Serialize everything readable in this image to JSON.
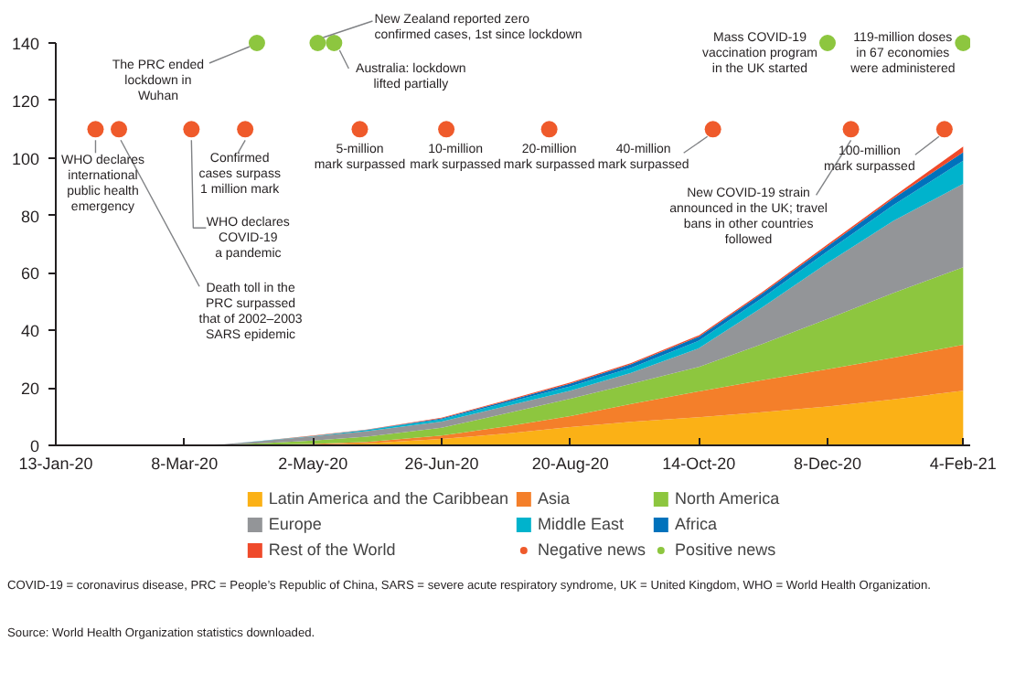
{
  "chart_data": {
    "type": "area",
    "stacked": true,
    "x": [
      "2020-01-13",
      "2020-02-15",
      "2020-03-08",
      "2020-03-25",
      "2020-04-10",
      "2020-05-02",
      "2020-05-25",
      "2020-06-26",
      "2020-07-25",
      "2020-08-20",
      "2020-09-15",
      "2020-10-14",
      "2020-11-10",
      "2020-12-08",
      "2021-01-05",
      "2021-02-04"
    ],
    "series": [
      {
        "name": "Latin America and the Caribbean",
        "color": "#fbb116",
        "values": [
          0,
          0,
          0,
          0,
          0,
          0.2,
          0.7,
          2.2,
          4.2,
          6.4,
          8.2,
          9.8,
          11.5,
          13.5,
          16,
          19
        ]
      },
      {
        "name": "Asia",
        "color": "#f47f2a",
        "values": [
          0,
          0.1,
          0.1,
          0.1,
          0.2,
          0.3,
          0.5,
          1.2,
          2.6,
          3.8,
          6.2,
          9,
          11.2,
          13,
          14.5,
          16
        ]
      },
      {
        "name": "North America",
        "color": "#8dc63f",
        "values": [
          0,
          0,
          0,
          0.1,
          0.5,
          1.2,
          1.8,
          2.7,
          4.6,
          6,
          7,
          8.5,
          12.5,
          17.5,
          22.5,
          27
        ]
      },
      {
        "name": "Europe",
        "color": "#939598",
        "values": [
          0,
          0,
          0,
          0.2,
          0.8,
          1.4,
          1.9,
          2.2,
          2.5,
          2.8,
          3.8,
          6.5,
          12.8,
          19.5,
          25,
          29
        ]
      },
      {
        "name": "Middle East",
        "color": "#00b3cc",
        "values": [
          0,
          0,
          0,
          0,
          0.1,
          0.2,
          0.4,
          0.8,
          1.2,
          1.5,
          1.8,
          2.6,
          3.2,
          4,
          5.5,
          8
        ]
      },
      {
        "name": "Africa",
        "color": "#0072bc",
        "values": [
          0,
          0,
          0,
          0,
          0,
          0,
          0.1,
          0.3,
          0.6,
          1,
          1.2,
          1.4,
          1.6,
          1.8,
          2.3,
          3
        ]
      },
      {
        "name": "Rest of the World",
        "color": "#ef4a2b",
        "values": [
          0,
          0,
          0,
          0,
          0,
          0.1,
          0.1,
          0.2,
          0.3,
          0.4,
          0.4,
          0.5,
          0.5,
          0.6,
          0.7,
          2
        ]
      },
      {
        "name": "Negative news",
        "type": "scatter",
        "marker": "circle",
        "color": "#ef5a2b",
        "x": [
          "2020-01-30",
          "2020-02-09",
          "2020-03-11",
          "2020-04-03",
          "2020-05-22",
          "2020-06-28",
          "2020-08-11",
          "2020-10-20",
          "2020-12-18",
          "2021-01-27"
        ],
        "values": [
          110,
          110,
          110,
          110,
          110,
          110,
          110,
          110,
          110,
          110
        ]
      },
      {
        "name": "Positive news",
        "type": "scatter",
        "marker": "circle",
        "color": "#8dc63f",
        "x": [
          "2020-04-08",
          "2020-05-04",
          "2020-05-11",
          "2020-12-08",
          "2021-02-04"
        ],
        "values": [
          140,
          140,
          140,
          140,
          140
        ]
      }
    ],
    "xlim": [
      "2020-01-13",
      "2021-02-07"
    ],
    "xticks": [
      {
        "value": "2020-01-13",
        "label": "13-Jan-20"
      },
      {
        "value": "2020-03-08",
        "label": "8-Mar-20"
      },
      {
        "value": "2020-05-02",
        "label": "2-May-20"
      },
      {
        "value": "2020-06-26",
        "label": "26-Jun-20"
      },
      {
        "value": "2020-08-20",
        "label": "20-Aug-20"
      },
      {
        "value": "2020-10-14",
        "label": "14-Oct-20"
      },
      {
        "value": "2020-12-08",
        "label": "8-Dec-20"
      },
      {
        "value": "2021-02-04",
        "label": "4-Feb-21"
      }
    ],
    "ylim": [
      0,
      140
    ],
    "yticks": [
      0,
      20,
      40,
      60,
      80,
      100,
      120,
      140
    ],
    "grid": false,
    "legend": "bottom",
    "annotations": [
      {
        "text": "WHO declares international public health emergency",
        "x": "2020-01-30",
        "y": 110
      },
      {
        "text": "Death toll in the PRC surpassed that of 2002–2003 SARS epidemic",
        "x": "2020-02-09",
        "y": 110
      },
      {
        "text": "WHO declares COVID-19 a pandemic",
        "x": "2020-03-11",
        "y": 110
      },
      {
        "text": "Confirmed cases surpass 1 million mark",
        "x": "2020-04-03",
        "y": 110
      },
      {
        "text": "5-million mark surpassed",
        "x": "2020-05-22",
        "y": 110
      },
      {
        "text": "10-million mark surpassed",
        "x": "2020-06-28",
        "y": 110
      },
      {
        "text": "20-million mark surpassed",
        "x": "2020-08-11",
        "y": 110
      },
      {
        "text": "40-million mark surpassed",
        "x": "2020-10-20",
        "y": 110
      },
      {
        "text": "New COVID-19 strain announced in the UK; travel bans in other countries followed",
        "x": "2020-12-18",
        "y": 110
      },
      {
        "text": "100-million mark surpassed",
        "x": "2021-01-27",
        "y": 110
      },
      {
        "text": "The PRC ended lockdown in Wuhan",
        "x": "2020-04-08",
        "y": 140
      },
      {
        "text": "New Zealand reported zero confirmed cases, 1st since lockdown",
        "x": "2020-05-04",
        "y": 140
      },
      {
        "text": "Australia: lockdown lifted partially",
        "x": "2020-05-11",
        "y": 140
      },
      {
        "text": "Mass COVID-19 vaccination program in the UK started",
        "x": "2020-12-08",
        "y": 140
      },
      {
        "text": "119-million doses in 67 economies were administered",
        "x": "2021-02-04",
        "y": 140
      },
      "COVID-19 = coronavirus disease, PRC = People’s Republic of China, SARS = severe acute respiratory syndrome, UK = United Kingdom, WHO = World Health Organization.",
      "Source: World Health Organization statistics downloaded."
    ]
  }
}
